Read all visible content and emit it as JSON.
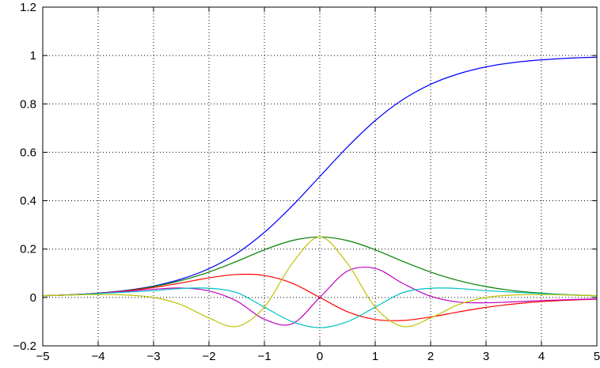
{
  "chart_data": {
    "type": "line",
    "title": "",
    "xlabel": "",
    "ylabel": "",
    "xlim": [
      -5,
      5
    ],
    "ylim": [
      -0.2,
      1.2
    ],
    "grid": true,
    "legend": "none",
    "x_ticks": [
      -5,
      -4,
      -3,
      -2,
      -1,
      0,
      1,
      2,
      3,
      4,
      5
    ],
    "x_tick_labels": [
      "−5",
      "−4",
      "−3",
      "−2",
      "−1",
      "0",
      "1",
      "2",
      "3",
      "4",
      "5"
    ],
    "y_ticks": [
      -0.2,
      0,
      0.2,
      0.4,
      0.6,
      0.8,
      1,
      1.2
    ],
    "y_tick_labels": [
      "−0.2",
      "0",
      "0.2",
      "0.4",
      "0.6",
      "0.8",
      "1",
      "1.2"
    ],
    "series": [
      {
        "color": "#0000ff",
        "x": [
          -5,
          -4.5,
          -4,
          -3.5,
          -3,
          -2.5,
          -2,
          -1.5,
          -1,
          -0.5,
          0,
          0.5,
          1,
          1.5,
          2,
          2.5,
          3,
          3.5,
          4,
          4.5,
          5
        ],
        "values": [
          0.007,
          0.011,
          0.018,
          0.029,
          0.047,
          0.076,
          0.119,
          0.182,
          0.269,
          0.378,
          0.5,
          0.622,
          0.731,
          0.818,
          0.881,
          0.924,
          0.953,
          0.971,
          0.982,
          0.989,
          0.993
        ]
      },
      {
        "color": "#008000",
        "x": [
          -5,
          -4.5,
          -4,
          -3.5,
          -3,
          -2.5,
          -2,
          -1.5,
          -1,
          -0.5,
          0,
          0.5,
          1,
          1.5,
          2,
          2.5,
          3,
          3.5,
          4,
          4.5,
          5
        ],
        "values": [
          0.007,
          0.011,
          0.018,
          0.028,
          0.045,
          0.07,
          0.105,
          0.149,
          0.197,
          0.235,
          0.25,
          0.235,
          0.197,
          0.149,
          0.105,
          0.07,
          0.045,
          0.028,
          0.018,
          0.011,
          0.007
        ]
      },
      {
        "color": "#ff0000",
        "x": [
          -5,
          -4.5,
          -4,
          -3.5,
          -3,
          -2.5,
          -2,
          -1.5,
          -1,
          -0.5,
          0,
          0.5,
          1,
          1.5,
          2,
          2.5,
          3,
          3.5,
          4,
          4.5,
          5
        ],
        "values": [
          0.007,
          0.011,
          0.017,
          0.027,
          0.041,
          0.06,
          0.081,
          0.095,
          0.091,
          0.059,
          0.0,
          -0.059,
          -0.091,
          -0.095,
          -0.081,
          -0.06,
          -0.041,
          -0.027,
          -0.017,
          -0.011,
          -0.007
        ]
      },
      {
        "color": "#c000c0",
        "x": [
          -5,
          -4.5,
          -4,
          -3.5,
          -3,
          -2.5,
          -2,
          -1.5,
          -1,
          -0.5,
          0,
          0.5,
          1,
          1.5,
          2,
          2.5,
          3,
          3.5,
          4,
          4.5,
          5
        ],
        "values": [
          0.007,
          0.011,
          0.017,
          0.025,
          0.034,
          0.039,
          0.027,
          -0.015,
          -0.09,
          -0.109,
          0.0,
          0.109,
          0.12,
          0.058,
          0.005,
          -0.019,
          -0.022,
          -0.018,
          -0.013,
          -0.009,
          -0.006
        ]
      },
      {
        "color": "#00c0c0",
        "x": [
          -5,
          -4.5,
          -4,
          -3.5,
          -3,
          -2.5,
          -2,
          -1.5,
          -1,
          -0.5,
          0,
          0.5,
          1,
          1.5,
          2,
          2.5,
          3,
          3.5,
          4,
          4.5,
          5
        ],
        "values": [
          0.007,
          0.011,
          0.016,
          0.022,
          0.028,
          0.037,
          0.038,
          0.02,
          -0.04,
          -0.1,
          -0.125,
          -0.1,
          -0.04,
          0.02,
          0.038,
          0.037,
          0.028,
          0.022,
          0.016,
          0.011,
          0.007
        ]
      },
      {
        "color": "#c0c000",
        "x": [
          -5,
          -4.5,
          -4,
          -3.5,
          -3,
          -2.5,
          -2,
          -1.5,
          -1,
          -0.5,
          0,
          0.5,
          1,
          1.5,
          2,
          2.5,
          3,
          3.5,
          4,
          4.5,
          5
        ],
        "values": [
          0.007,
          0.01,
          0.012,
          0.01,
          0.0,
          -0.03,
          -0.085,
          -0.12,
          -0.04,
          0.14,
          0.25,
          0.14,
          -0.04,
          -0.12,
          -0.085,
          -0.03,
          0.0,
          0.01,
          0.012,
          0.01,
          0.007
        ]
      }
    ]
  }
}
